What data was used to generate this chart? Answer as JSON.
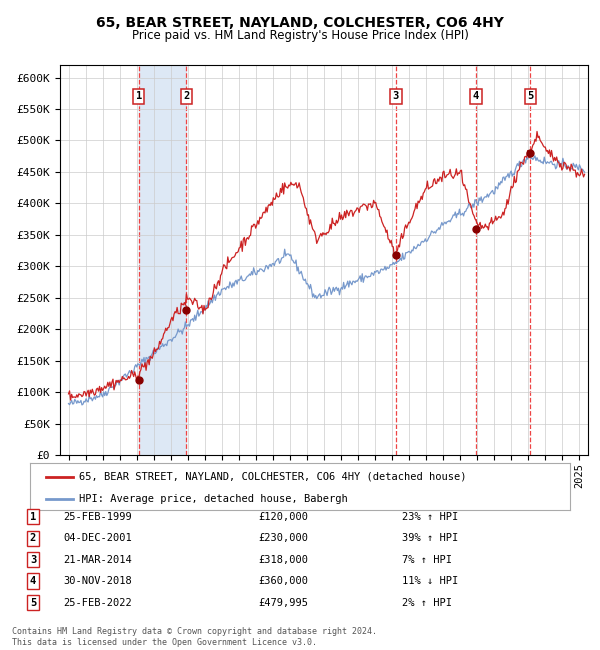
{
  "title": "65, BEAR STREET, NAYLAND, COLCHESTER, CO6 4HY",
  "subtitle": "Price paid vs. HM Land Registry's House Price Index (HPI)",
  "xlim": [
    1994.5,
    2025.5
  ],
  "ylim": [
    0,
    620000
  ],
  "yticks": [
    0,
    50000,
    100000,
    150000,
    200000,
    250000,
    300000,
    350000,
    400000,
    450000,
    500000,
    550000,
    600000
  ],
  "ytick_labels": [
    "£0",
    "£50K",
    "£100K",
    "£150K",
    "£200K",
    "£250K",
    "£300K",
    "£350K",
    "£400K",
    "£450K",
    "£500K",
    "£550K",
    "£600K"
  ],
  "sales": [
    {
      "num": 1,
      "date": "25-FEB-1999",
      "year": 1999.12,
      "price": 120000,
      "pct": "23%",
      "dir": "↑"
    },
    {
      "num": 2,
      "date": "04-DEC-2001",
      "year": 2001.92,
      "price": 230000,
      "pct": "39%",
      "dir": "↑"
    },
    {
      "num": 3,
      "date": "21-MAR-2014",
      "year": 2014.22,
      "price": 318000,
      "pct": "7%",
      "dir": "↑"
    },
    {
      "num": 4,
      "date": "30-NOV-2018",
      "year": 2018.92,
      "price": 360000,
      "pct": "11%",
      "dir": "↓"
    },
    {
      "num": 5,
      "date": "25-FEB-2022",
      "year": 2022.12,
      "price": 479995,
      "pct": "2%",
      "dir": "↑"
    }
  ],
  "hpi_color": "#7799cc",
  "price_color": "#cc2222",
  "marker_color": "#880000",
  "vline_color": "#ee4444",
  "shade_color": "#dde8f5",
  "grid_color": "#cccccc",
  "bg_color": "#ffffff",
  "legend_label_price": "65, BEAR STREET, NAYLAND, COLCHESTER, CO6 4HY (detached house)",
  "legend_label_hpi": "HPI: Average price, detached house, Babergh",
  "footer": "Contains HM Land Registry data © Crown copyright and database right 2024.\nThis data is licensed under the Open Government Licence v3.0."
}
